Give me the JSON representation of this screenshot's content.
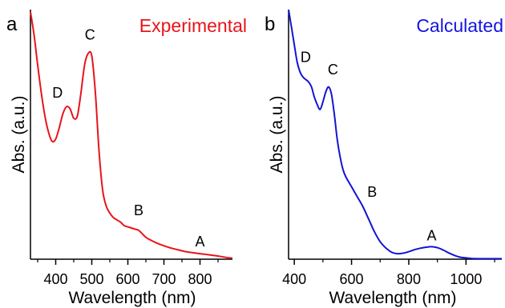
{
  "chart_data": [
    {
      "type": "line",
      "panel_label": "a",
      "title": "Experimental",
      "title_color": "#e8141b",
      "line_color": "#e8141b",
      "xlabel": "Wavelength (nm)",
      "ylabel": "Abs. (a.u.)",
      "xlim": [
        330,
        890
      ],
      "ylim": [
        0,
        1.08
      ],
      "x_ticks": [
        400,
        500,
        600,
        700,
        800
      ],
      "x_minor_ticks": [
        350,
        450,
        550,
        650,
        750,
        850
      ],
      "y_ticks_shown": false,
      "grid": false,
      "legend": "none",
      "series": [
        {
          "x": [
            330,
            340,
            350,
            360,
            370,
            380,
            390,
            400,
            410,
            420,
            430,
            440,
            450,
            460,
            470,
            480,
            490,
            500,
            510,
            520,
            530,
            540,
            550,
            560,
            570,
            580,
            590,
            600,
            610,
            620,
            630,
            640,
            650,
            660,
            680,
            700,
            720,
            740,
            760,
            780,
            800,
            820,
            840,
            860,
            880,
            890
          ],
          "y": [
            1.07,
            0.97,
            0.84,
            0.72,
            0.62,
            0.55,
            0.51,
            0.52,
            0.57,
            0.63,
            0.66,
            0.65,
            0.61,
            0.62,
            0.72,
            0.84,
            0.89,
            0.88,
            0.72,
            0.47,
            0.3,
            0.23,
            0.2,
            0.18,
            0.17,
            0.16,
            0.145,
            0.14,
            0.135,
            0.13,
            0.125,
            0.11,
            0.095,
            0.085,
            0.07,
            0.058,
            0.048,
            0.04,
            0.033,
            0.028,
            0.024,
            0.02,
            0.016,
            0.011,
            0.006,
            0.004
          ]
        }
      ],
      "annotations": [
        {
          "text": "D",
          "x": 405,
          "y": 0.7
        },
        {
          "text": "C",
          "x": 495,
          "y": 0.95
        },
        {
          "text": "B",
          "x": 630,
          "y": 0.19
        },
        {
          "text": "A",
          "x": 800,
          "y": 0.055
        }
      ]
    },
    {
      "type": "line",
      "panel_label": "b",
      "title": "Calculated",
      "title_color": "#1414e0",
      "line_color": "#1414d6",
      "xlabel": "Wavelength (nm)",
      "ylabel": "Abs. (a.u.)",
      "xlim": [
        380,
        1125
      ],
      "ylim": [
        0,
        1.0
      ],
      "x_ticks": [
        400,
        600,
        800,
        1000
      ],
      "x_minor_ticks": [
        500,
        700,
        900,
        1100
      ],
      "y_ticks_shown": false,
      "grid": false,
      "legend": "none",
      "series": [
        {
          "x": [
            380,
            390,
            400,
            410,
            420,
            430,
            440,
            450,
            460,
            470,
            480,
            490,
            500,
            510,
            520,
            530,
            540,
            550,
            560,
            570,
            580,
            600,
            620,
            640,
            660,
            680,
            700,
            720,
            740,
            760,
            780,
            800,
            820,
            840,
            860,
            880,
            900,
            920,
            940,
            960,
            980,
            1000,
            1020,
            1040,
            1060,
            1080,
            1100,
            1125
          ],
          "y": [
            1.0,
            0.93,
            0.86,
            0.79,
            0.75,
            0.73,
            0.72,
            0.71,
            0.69,
            0.65,
            0.62,
            0.6,
            0.63,
            0.67,
            0.69,
            0.66,
            0.58,
            0.48,
            0.41,
            0.36,
            0.33,
            0.29,
            0.25,
            0.21,
            0.16,
            0.11,
            0.07,
            0.045,
            0.028,
            0.022,
            0.024,
            0.03,
            0.038,
            0.044,
            0.048,
            0.05,
            0.046,
            0.037,
            0.025,
            0.015,
            0.008,
            0.005,
            0.003,
            0.002,
            0.002,
            0.002,
            0.002,
            0.002
          ]
        }
      ],
      "annotations": [
        {
          "text": "D",
          "x": 440,
          "y": 0.79
        },
        {
          "text": "C",
          "x": 535,
          "y": 0.74
        },
        {
          "text": "B",
          "x": 672,
          "y": 0.25
        },
        {
          "text": "A",
          "x": 880,
          "y": 0.075
        }
      ]
    }
  ]
}
